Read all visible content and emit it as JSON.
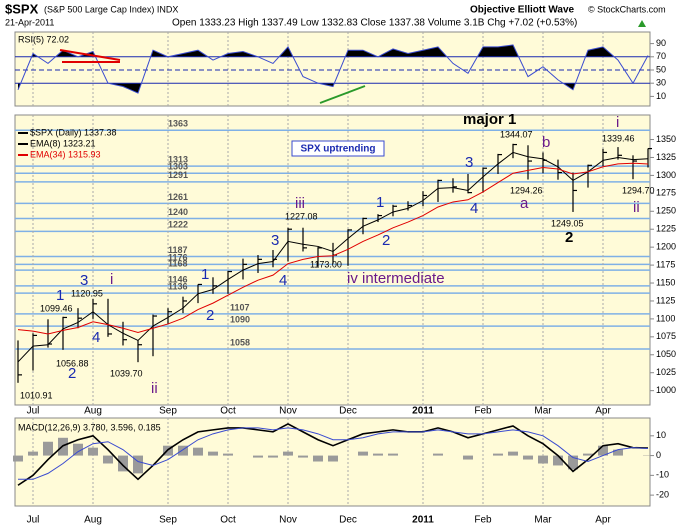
{
  "header": {
    "date": "21-Apr-2011",
    "quote": "Open 1333.23 High 1337.49 Low 1332.83 Close 1337.38 Volume 3.1B Chg +7.02 (+0.53%)",
    "author": "Objective Elliott Wave",
    "source": "© StockCharts.com"
  },
  "chart_data": [
    {
      "type": "ohlc",
      "title": "$SPX",
      "subtitle": "(S&P 500 Large Cap Index) INDX",
      "box": "SPX uptrending",
      "categories": [
        null,
        "Jul",
        null,
        null,
        null,
        "Aug",
        null,
        null,
        null,
        null,
        "Sep",
        null,
        null,
        null,
        "Oct",
        null,
        null,
        null,
        "Nov",
        null,
        null,
        null,
        "Dec",
        null,
        null,
        null,
        null,
        "2011",
        null,
        null,
        null,
        "Feb",
        null,
        null,
        null,
        "Mar",
        null,
        null,
        null,
        "Apr",
        null,
        null,
        null
      ],
      "series": [
        {
          "name": "$SPX (Daily) 1337.38",
          "color": "#000000",
          "high": [
            1070,
            1080,
            1099.46,
            1103,
            1115,
            1128,
            1128,
            1096,
            1070,
            1106,
            1115,
            1131,
            1148,
            1158,
            1167,
            1184,
            1189,
            1196,
            1227,
            1227.08,
            1200,
            1206,
            1225,
            1241,
            1246,
            1259,
            1264,
            1278,
            1294,
            1296,
            1302,
            1311,
            1330,
            1344.07,
            1342,
            1332,
            1322,
            1304,
            1315,
            1337,
            1339.46,
            1328,
            1337.49
          ],
          "low": [
            1010.91,
            1028,
            1060,
            1056.88,
            1087,
            1100,
            1075,
            1063,
            1039.7,
            1048,
            1093,
            1108,
            1122,
            1135,
            1135,
            1155,
            1164,
            1172,
            1180,
            1194,
            1173.0,
            1177,
            1174,
            1218,
            1235,
            1243,
            1251,
            1257,
            1263,
            1276,
            1275,
            1276,
            1302,
            1324,
            1294.26,
            1303,
            1294,
            1249.05,
            1283,
            1313,
            1322,
            1294.7,
            1311
          ],
          "close": [
            1022,
            1077,
            1065,
            1102,
            1101,
            1121,
            1079,
            1071,
            1064,
            1104,
            1110,
            1125,
            1148,
            1146,
            1166,
            1176,
            1183,
            1183,
            1225,
            1199,
            1199,
            1189,
            1224,
            1240,
            1244,
            1257,
            1258,
            1272,
            1293,
            1284,
            1276,
            1310,
            1329,
            1343,
            1320,
            1321,
            1304,
            1279,
            1314,
            1332,
            1328,
            1320,
            1337.38
          ]
        },
        {
          "name": "EMA(8) 1323.21",
          "color": "#000000",
          "values": [
            1040,
            1062,
            1064,
            1086,
            1095,
            1110,
            1092,
            1080,
            1070,
            1090,
            1102,
            1115,
            1135,
            1141,
            1155,
            1168,
            1177,
            1180,
            1208,
            1204,
            1201,
            1194,
            1212,
            1229,
            1238,
            1249,
            1254,
            1265,
            1282,
            1283,
            1279,
            1298,
            1316,
            1332,
            1326,
            1323,
            1312,
            1293,
            1305,
            1321,
            1325,
            1322,
            1323.21
          ]
        },
        {
          "name": "EMA(34) 1315.93",
          "color": "#e00000",
          "values": [
            1085,
            1083,
            1079,
            1084,
            1088,
            1096,
            1092,
            1087,
            1081,
            1087,
            1093,
            1101,
            1113,
            1122,
            1133,
            1144,
            1154,
            1161,
            1177,
            1183,
            1187,
            1188,
            1197,
            1208,
            1217,
            1227,
            1235,
            1244,
            1256,
            1263,
            1266,
            1277,
            1290,
            1303,
            1307,
            1311,
            1309,
            1302,
            1305,
            1312,
            1316,
            1317,
            1315.93
          ]
        }
      ],
      "ylim": [
        980,
        1380
      ],
      "yticks": [
        1000,
        1025,
        1050,
        1075,
        1100,
        1125,
        1150,
        1175,
        1200,
        1225,
        1250,
        1275,
        1300,
        1325,
        1350
      ],
      "levels": [
        1363,
        1313,
        1303,
        1291,
        1261,
        1240,
        1222,
        1187,
        1176,
        1168,
        1146,
        1136,
        1107,
        1090,
        1058
      ],
      "level_color": "#7fb0e6",
      "annotations": [
        "1010.91",
        "1056.88",
        "1099.46",
        "1120.95",
        "1039.70",
        "1227.08",
        "1173.00",
        "1344.07",
        "1294.26",
        "1249.05",
        "1339.46",
        "1294.70",
        "1",
        "2",
        "3",
        "4",
        "i",
        "ii",
        "1",
        "2",
        "3",
        "4",
        "iii",
        "iv intermediate",
        "1",
        "2",
        "3",
        "4",
        "major 1",
        "b",
        "a",
        "2",
        "i",
        "ii"
      ]
    },
    {
      "type": "line",
      "title": "RSI(5) 72.02",
      "color": "#3a4bd0",
      "fill": "#000000",
      "values": [
        20,
        75,
        60,
        80,
        70,
        78,
        30,
        25,
        15,
        80,
        70,
        75,
        80,
        65,
        75,
        78,
        70,
        60,
        85,
        40,
        30,
        25,
        80,
        80,
        70,
        82,
        75,
        80,
        85,
        60,
        45,
        85,
        85,
        88,
        40,
        55,
        35,
        20,
        80,
        85,
        65,
        30,
        72.02
      ],
      "ylim": [
        0,
        100
      ],
      "yticks": [
        10,
        30,
        50,
        70,
        90
      ],
      "bands": [
        30,
        70
      ]
    },
    {
      "type": "macd",
      "title": "MACD(12,26,9) 3.780, 3.596, 0.185",
      "series": [
        {
          "name": "MACD",
          "color": "#000000",
          "values": [
            -15,
            -10,
            -2,
            5,
            8,
            10,
            3,
            -5,
            -12,
            -5,
            3,
            8,
            12,
            13,
            14,
            14,
            13,
            12,
            16,
            12,
            8,
            5,
            8,
            11,
            12,
            13,
            12,
            12,
            14,
            12,
            9,
            11,
            13,
            15,
            10,
            6,
            0,
            -8,
            -2,
            5,
            6,
            4,
            3.78
          ]
        },
        {
          "name": "Signal",
          "color": "#3a4bd0",
          "values": [
            -12,
            -12,
            -9,
            -4,
            2,
            6,
            7,
            3,
            -3,
            -5,
            -2,
            3,
            8,
            11,
            13,
            14,
            14,
            13,
            14,
            13,
            11,
            8,
            8,
            9,
            11,
            12,
            12,
            12,
            13,
            12,
            11,
            11,
            12,
            13,
            12,
            10,
            5,
            -1,
            -3,
            0,
            3,
            4,
            3.596
          ]
        },
        {
          "name": "Histogram",
          "color": "#9a9a9a",
          "values": [
            -3,
            2,
            7,
            9,
            6,
            4,
            -4,
            -8,
            -9,
            0,
            5,
            5,
            4,
            2,
            1,
            0,
            -1,
            -1,
            2,
            -1,
            -3,
            -3,
            0,
            2,
            1,
            1,
            0,
            0,
            1,
            0,
            -2,
            0,
            1,
            2,
            -2,
            -4,
            -5,
            -7,
            1,
            5,
            3,
            0,
            0.185
          ]
        }
      ],
      "ylim": [
        -25,
        18
      ],
      "yticks": [
        -20,
        -10,
        0,
        10
      ]
    }
  ]
}
